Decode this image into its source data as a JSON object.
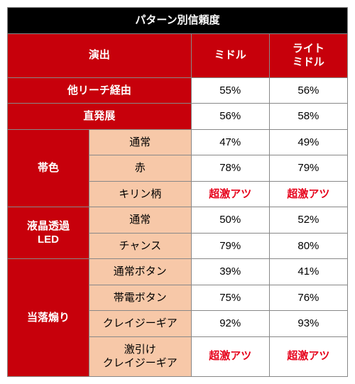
{
  "title": "パターン別信頼度",
  "headers": {
    "enshutsu": "演出",
    "middle": "ミドル",
    "light_middle": "ライト\nミドル"
  },
  "full_rows": [
    {
      "label": "他リーチ経由",
      "middle": "55%",
      "light": "56%"
    },
    {
      "label": "直発展",
      "middle": "56%",
      "light": "58%"
    }
  ],
  "groups": [
    {
      "name": "帯色",
      "rows": [
        {
          "label": "通常",
          "middle": "47%",
          "light": "49%",
          "hot": false
        },
        {
          "label": "赤",
          "middle": "78%",
          "light": "79%",
          "hot": false
        },
        {
          "label": "キリン柄",
          "middle": "超激アツ",
          "light": "超激アツ",
          "hot": true
        }
      ]
    },
    {
      "name": "液晶透過\nLED",
      "rows": [
        {
          "label": "通常",
          "middle": "50%",
          "light": "52%",
          "hot": false
        },
        {
          "label": "チャンス",
          "middle": "79%",
          "light": "80%",
          "hot": false
        }
      ]
    },
    {
      "name": "当落煽り",
      "rows": [
        {
          "label": "通常ボタン",
          "middle": "39%",
          "light": "41%",
          "hot": false
        },
        {
          "label": "帯電ボタン",
          "middle": "75%",
          "light": "76%",
          "hot": false
        },
        {
          "label": "クレイジーギア",
          "middle": "92%",
          "light": "93%",
          "hot": false
        },
        {
          "label": "激引け\nクレイジーギア",
          "middle": "超激アツ",
          "light": "超激アツ",
          "hot": true
        }
      ]
    }
  ],
  "colors": {
    "title_bg": "#000000",
    "header_red": "#c7000b",
    "peach": "#f7c8a8",
    "hot_text": "#e6001a",
    "border": "#888888"
  }
}
